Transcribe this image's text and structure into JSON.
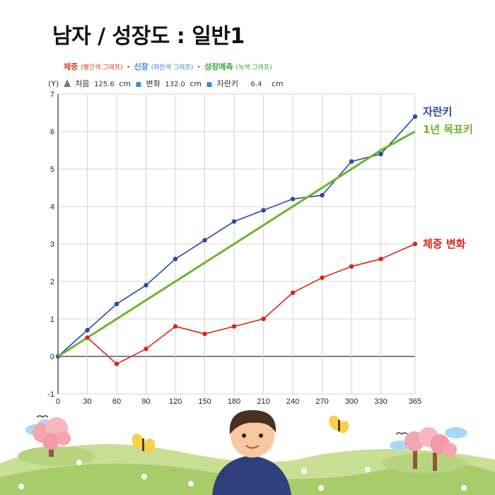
{
  "title": "남자 / 성장도 : 일반1",
  "legend": [
    {
      "label": "체중",
      "note": "(빨간색 그래프)",
      "color": "#e0401f"
    },
    {
      "label": "신장",
      "note": "(파란색 그래프)",
      "color": "#3a8ad0"
    },
    {
      "label": "성장예측",
      "note": "(녹색 그래프)",
      "color": "#3aa53a"
    }
  ],
  "legend_sep": "·",
  "values_row": {
    "axis_label": "(Y)",
    "start_label": "처음",
    "start_value": "125.6",
    "start_unit": "cm",
    "change_label": "변화",
    "change_value": "132.0",
    "change_unit": "cm",
    "growth_label": "자란키",
    "growth_value": "6.4",
    "growth_unit": "cm"
  },
  "chart_data": {
    "type": "line",
    "x": [
      0,
      30,
      60,
      90,
      120,
      150,
      180,
      210,
      240,
      270,
      300,
      330,
      365
    ],
    "xticks": [
      "0",
      "30",
      "60",
      "90",
      "120",
      "150",
      "180",
      "210",
      "240",
      "270",
      "300",
      "330",
      "365"
    ],
    "yticks": [
      "-1",
      "0",
      "1",
      "2",
      "3",
      "4",
      "5",
      "6",
      "7"
    ],
    "xlim": [
      0,
      365
    ],
    "ylim": [
      -1,
      7
    ],
    "grid": true,
    "series": [
      {
        "name": "자란키",
        "color": "#2b4a9e",
        "marker": true,
        "values": [
          0,
          0.7,
          1.4,
          1.9,
          2.6,
          3.1,
          3.6,
          3.9,
          4.2,
          4.3,
          5.2,
          5.4,
          6.4
        ]
      },
      {
        "name": "1년 목표키",
        "color": "#6cb52d",
        "marker": false,
        "values": [
          0,
          0.5,
          1.0,
          1.5,
          2.0,
          2.5,
          3.0,
          3.5,
          4.0,
          4.5,
          5.0,
          5.5,
          6.0
        ]
      },
      {
        "name": "체중 변화",
        "color": "#d9261c",
        "marker": true,
        "values": [
          null,
          0.5,
          -0.2,
          0.2,
          0.8,
          0.6,
          0.8,
          1.0,
          1.7,
          2.1,
          2.4,
          2.6,
          3.0
        ]
      }
    ]
  }
}
